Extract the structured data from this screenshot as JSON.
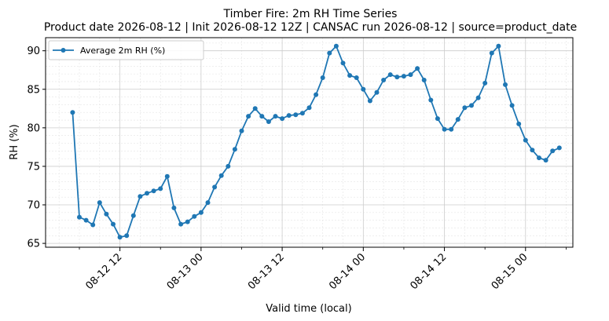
{
  "chart_data": {
    "type": "line",
    "title": "Timber Fire: 2m RH Time Series",
    "subtitle": "Product date 2026-08-12 | Init 2026-08-12 12Z | CANSAC run 2026-08-12 | source=product_date",
    "xlabel": "Valid time (local)",
    "ylabel": "RH (%)",
    "x_unit": "hours",
    "xlim": [
      "2026-08-12 01:00",
      "2026-08-15 07:00"
    ],
    "ylim": [
      64.5,
      91.7
    ],
    "x_ticks": [
      {
        "label": "08-12 12",
        "value": "2026-08-12 12:00"
      },
      {
        "label": "08-13 00",
        "value": "2026-08-13 00:00"
      },
      {
        "label": "08-13 12",
        "value": "2026-08-13 12:00"
      },
      {
        "label": "08-14 00",
        "value": "2026-08-14 00:00"
      },
      {
        "label": "08-14 12",
        "value": "2026-08-14 12:00"
      },
      {
        "label": "08-15 00",
        "value": "2026-08-15 00:00"
      }
    ],
    "y_ticks": [
      65,
      70,
      75,
      80,
      85,
      90
    ],
    "grid": true,
    "legend": "top-left",
    "color": "#1f77b4",
    "series": [
      {
        "name": "Average 2m RH (%)",
        "points": [
          [
            "2026-08-12 05:00",
            82.0
          ],
          [
            "2026-08-12 06:00",
            68.4
          ],
          [
            "2026-08-12 07:00",
            68.0
          ],
          [
            "2026-08-12 08:00",
            67.4
          ],
          [
            "2026-08-12 09:00",
            70.3
          ],
          [
            "2026-08-12 10:00",
            68.8
          ],
          [
            "2026-08-12 11:00",
            67.5
          ],
          [
            "2026-08-12 12:00",
            65.8
          ],
          [
            "2026-08-12 13:00",
            66.0
          ],
          [
            "2026-08-12 14:00",
            68.6
          ],
          [
            "2026-08-12 15:00",
            71.1
          ],
          [
            "2026-08-12 16:00",
            71.5
          ],
          [
            "2026-08-12 17:00",
            71.8
          ],
          [
            "2026-08-12 18:00",
            72.1
          ],
          [
            "2026-08-12 19:00",
            73.7
          ],
          [
            "2026-08-12 20:00",
            69.6
          ],
          [
            "2026-08-12 21:00",
            67.5
          ],
          [
            "2026-08-12 22:00",
            67.8
          ],
          [
            "2026-08-12 23:00",
            68.5
          ],
          [
            "2026-08-13 00:00",
            69.0
          ],
          [
            "2026-08-13 01:00",
            70.3
          ],
          [
            "2026-08-13 02:00",
            72.3
          ],
          [
            "2026-08-13 03:00",
            73.8
          ],
          [
            "2026-08-13 04:00",
            75.0
          ],
          [
            "2026-08-13 05:00",
            77.2
          ],
          [
            "2026-08-13 06:00",
            79.6
          ],
          [
            "2026-08-13 07:00",
            81.5
          ],
          [
            "2026-08-13 08:00",
            82.5
          ],
          [
            "2026-08-13 09:00",
            81.5
          ],
          [
            "2026-08-13 10:00",
            80.8
          ],
          [
            "2026-08-13 11:00",
            81.5
          ],
          [
            "2026-08-13 12:00",
            81.2
          ],
          [
            "2026-08-13 13:00",
            81.6
          ],
          [
            "2026-08-13 14:00",
            81.7
          ],
          [
            "2026-08-13 15:00",
            81.9
          ],
          [
            "2026-08-13 16:00",
            82.6
          ],
          [
            "2026-08-13 17:00",
            84.3
          ],
          [
            "2026-08-13 18:00",
            86.5
          ],
          [
            "2026-08-13 19:00",
            89.7
          ],
          [
            "2026-08-13 20:00",
            90.6
          ],
          [
            "2026-08-13 21:00",
            88.4
          ],
          [
            "2026-08-13 22:00",
            86.8
          ],
          [
            "2026-08-13 23:00",
            86.5
          ],
          [
            "2026-08-14 00:00",
            85.0
          ],
          [
            "2026-08-14 01:00",
            83.5
          ],
          [
            "2026-08-14 02:00",
            84.6
          ],
          [
            "2026-08-14 03:00",
            86.2
          ],
          [
            "2026-08-14 04:00",
            86.9
          ],
          [
            "2026-08-14 05:00",
            86.6
          ],
          [
            "2026-08-14 06:00",
            86.7
          ],
          [
            "2026-08-14 07:00",
            86.9
          ],
          [
            "2026-08-14 08:00",
            87.7
          ],
          [
            "2026-08-14 09:00",
            86.2
          ],
          [
            "2026-08-14 10:00",
            83.6
          ],
          [
            "2026-08-14 11:00",
            81.2
          ],
          [
            "2026-08-14 12:00",
            79.8
          ],
          [
            "2026-08-14 13:00",
            79.8
          ],
          [
            "2026-08-14 14:00",
            81.1
          ],
          [
            "2026-08-14 15:00",
            82.6
          ],
          [
            "2026-08-14 16:00",
            82.9
          ],
          [
            "2026-08-14 17:00",
            83.9
          ],
          [
            "2026-08-14 18:00",
            85.8
          ],
          [
            "2026-08-14 19:00",
            89.7
          ],
          [
            "2026-08-14 20:00",
            90.6
          ],
          [
            "2026-08-14 21:00",
            85.6
          ],
          [
            "2026-08-14 22:00",
            82.9
          ],
          [
            "2026-08-14 23:00",
            80.5
          ],
          [
            "2026-08-15 00:00",
            78.4
          ],
          [
            "2026-08-15 01:00",
            77.1
          ],
          [
            "2026-08-15 02:00",
            76.1
          ],
          [
            "2026-08-15 03:00",
            75.8
          ],
          [
            "2026-08-15 04:00",
            77.0
          ],
          [
            "2026-08-15 05:00",
            77.4
          ]
        ]
      }
    ]
  }
}
